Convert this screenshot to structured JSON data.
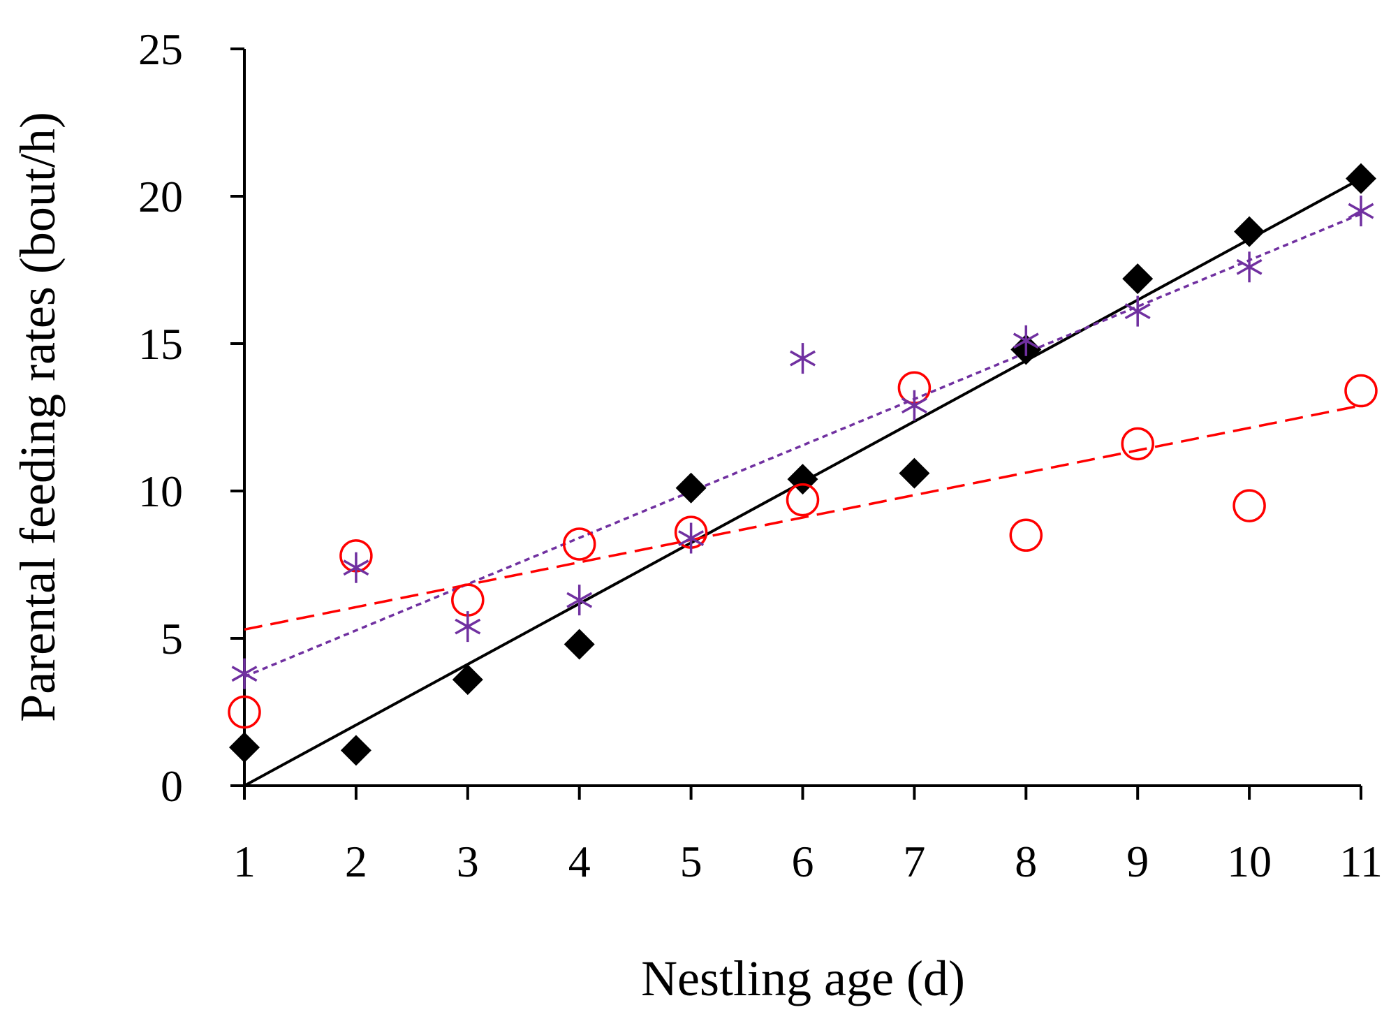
{
  "chart_data": {
    "type": "scatter",
    "title": "",
    "xlabel": "Nestling age (d)",
    "ylabel": "Parental feeding rates (bout/h)",
    "xlim": [
      1,
      11
    ],
    "ylim": [
      0,
      25
    ],
    "x_ticks": [
      "1",
      "2",
      "3",
      "4",
      "5",
      "6",
      "7",
      "8",
      "9",
      "10",
      "11"
    ],
    "y_ticks": [
      "0",
      "5",
      "10",
      "15",
      "20",
      "25"
    ],
    "legend": "none",
    "series": [
      {
        "name": "series-black",
        "marker": "diamond",
        "color": "#000000",
        "x": [
          1,
          2,
          3,
          4,
          5,
          6,
          7,
          8,
          9,
          10,
          11
        ],
        "values": [
          1.3,
          1.2,
          3.6,
          4.8,
          10.1,
          10.4,
          10.6,
          14.8,
          17.2,
          18.8,
          20.6
        ],
        "trendline": {
          "style": "solid",
          "start": [
            1,
            0.0
          ],
          "end": [
            11,
            20.6
          ]
        }
      },
      {
        "name": "series-red",
        "marker": "circle-open",
        "color": "#ff0000",
        "x": [
          1,
          2,
          3,
          4,
          5,
          6,
          7,
          8,
          9,
          10,
          11
        ],
        "values": [
          2.5,
          7.8,
          6.3,
          8.2,
          8.6,
          9.7,
          13.5,
          8.5,
          11.6,
          9.5,
          13.4
        ],
        "trendline": {
          "style": "dashed",
          "start": [
            1,
            5.3
          ],
          "end": [
            11,
            12.9
          ]
        }
      },
      {
        "name": "series-purple",
        "marker": "asterisk",
        "color": "#7030a0",
        "x": [
          1,
          2,
          3,
          4,
          5,
          6,
          7,
          8,
          9,
          10,
          11
        ],
        "values": [
          3.8,
          7.4,
          5.4,
          6.3,
          8.4,
          14.5,
          12.9,
          15.1,
          16.1,
          17.6,
          19.5
        ],
        "trendline": {
          "style": "dotted",
          "start": [
            1,
            3.7
          ],
          "end": [
            11,
            19.4
          ]
        }
      }
    ]
  }
}
